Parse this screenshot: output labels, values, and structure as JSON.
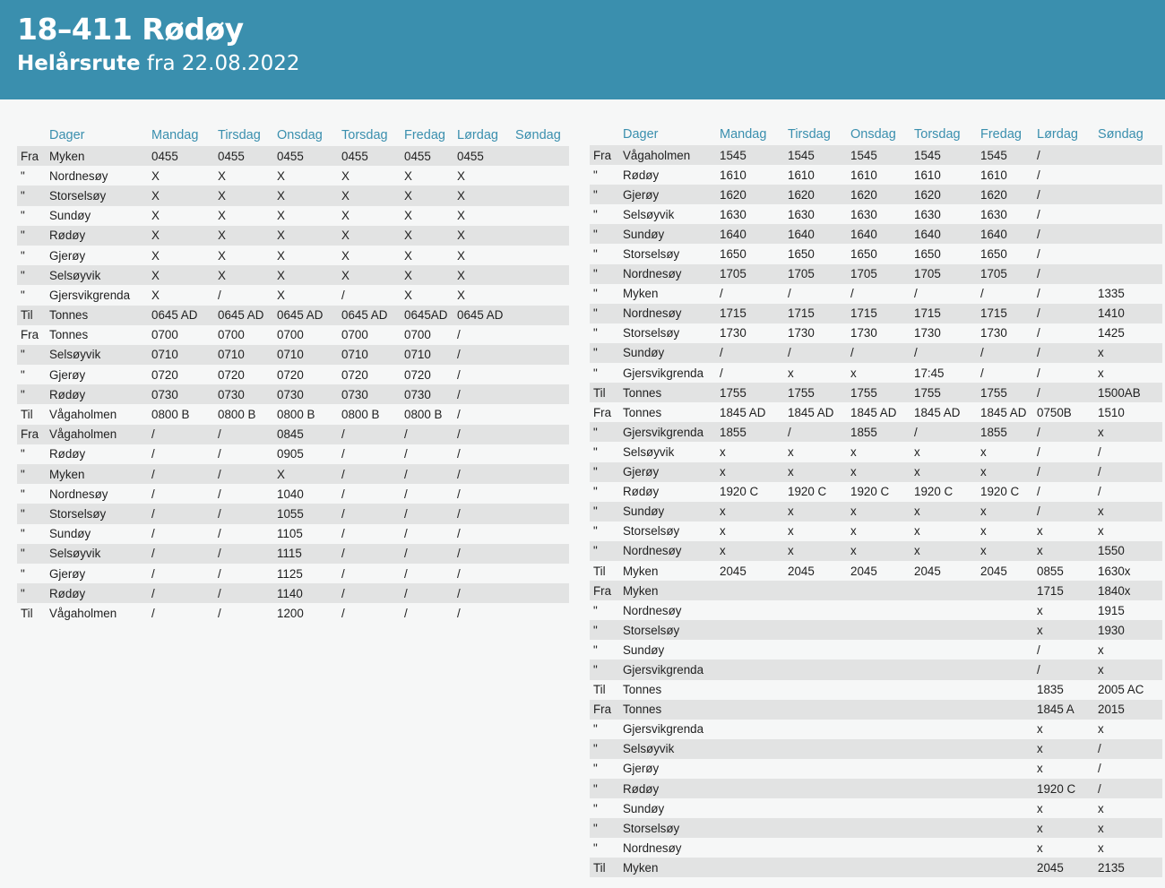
{
  "header": {
    "title": "18–411 Rødøy",
    "subtitle_bold": "Helårsrute",
    "subtitle_rest": " fra 22.08.2022"
  },
  "colors": {
    "header_bg": "#3a8fae",
    "accent_text": "#3a8fae",
    "row_shade": "#e2e3e3"
  },
  "left_table": {
    "headers": [
      "",
      "Dager",
      "Mandag",
      "Tirsdag",
      "Onsdag",
      "Torsdag",
      "Fredag",
      "Lørdag",
      "Søndag"
    ],
    "rows": [
      [
        "Fra",
        "Myken",
        "0455",
        "0455",
        "0455",
        "0455",
        "0455",
        "0455",
        ""
      ],
      [
        "\"",
        "Nordnesøy",
        "X",
        "X",
        "X",
        "X",
        "X",
        "X",
        ""
      ],
      [
        "\"",
        "Storselsøy",
        "X",
        "X",
        "X",
        "X",
        "X",
        "X",
        ""
      ],
      [
        "\"",
        "Sundøy",
        "X",
        "X",
        "X",
        "X",
        "X",
        "X",
        ""
      ],
      [
        "\"",
        "Rødøy",
        "X",
        "X",
        "X",
        "X",
        "X",
        "X",
        ""
      ],
      [
        "\"",
        "Gjerøy",
        "X",
        "X",
        "X",
        "X",
        "X",
        "X",
        ""
      ],
      [
        "\"",
        "Selsøyvik",
        "X",
        "X",
        "X",
        "X",
        "X",
        "X",
        ""
      ],
      [
        "\"",
        "Gjersvikgrenda",
        "X",
        "/",
        "X",
        "/",
        "X",
        "X",
        ""
      ],
      [
        "Til",
        "Tonnes",
        "0645 AD",
        "0645 AD",
        "0645 AD",
        "0645 AD",
        "0645AD",
        "0645 AD",
        ""
      ],
      [
        "Fra",
        "Tonnes",
        "0700",
        "0700",
        "0700",
        "0700",
        "0700",
        "/",
        ""
      ],
      [
        "\"",
        "Selsøyvik",
        "0710",
        "0710",
        "0710",
        "0710",
        "0710",
        "/",
        ""
      ],
      [
        "\"",
        "Gjerøy",
        "0720",
        "0720",
        "0720",
        "0720",
        "0720",
        "/",
        ""
      ],
      [
        "\"",
        "Rødøy",
        "0730",
        "0730",
        "0730",
        "0730",
        "0730",
        "/",
        ""
      ],
      [
        "Til",
        "Vågaholmen",
        "0800 B",
        "0800 B",
        "0800 B",
        "0800 B",
        "0800 B",
        "/",
        ""
      ],
      [
        "Fra",
        "Vågaholmen",
        "/",
        "/",
        "0845",
        "/",
        "/",
        "/",
        ""
      ],
      [
        "\"",
        "Rødøy",
        "/",
        "/",
        "0905",
        "/",
        "/",
        "/",
        ""
      ],
      [
        "\"",
        "Myken",
        "/",
        "/",
        "X",
        "/",
        "/",
        "/",
        ""
      ],
      [
        "\"",
        "Nordnesøy",
        "/",
        "/",
        "1040",
        "/",
        "/",
        "/",
        ""
      ],
      [
        "\"",
        "Storselsøy",
        "/",
        "/",
        "1055",
        "/",
        "/",
        "/",
        ""
      ],
      [
        "\"",
        "Sundøy",
        "/",
        "/",
        "1105",
        "/",
        "/",
        "/",
        ""
      ],
      [
        "\"",
        "Selsøyvik",
        "/",
        "/",
        "1115",
        "/",
        "/",
        "/",
        ""
      ],
      [
        "\"",
        "Gjerøy",
        "/",
        "/",
        "1125",
        "/",
        "/",
        "/",
        ""
      ],
      [
        "\"",
        "Rødøy",
        "/",
        "/",
        "1140",
        "/",
        "/",
        "/",
        ""
      ],
      [
        "Til",
        "Vågaholmen",
        "/",
        "/",
        "1200",
        "/",
        "/",
        "/",
        ""
      ]
    ]
  },
  "right_table": {
    "headers": [
      "",
      "Dager",
      "Mandag",
      "Tirsdag",
      "Onsdag",
      "Torsdag",
      "Fredag",
      "Lørdag",
      "Søndag"
    ],
    "rows": [
      [
        "Fra",
        "Vågaholmen",
        "1545",
        "1545",
        "1545",
        "1545",
        "1545",
        "/",
        ""
      ],
      [
        "\"",
        "Rødøy",
        "1610",
        "1610",
        "1610",
        "1610",
        "1610",
        "/",
        ""
      ],
      [
        "\"",
        "Gjerøy",
        "1620",
        "1620",
        "1620",
        "1620",
        "1620",
        "/",
        ""
      ],
      [
        "\"",
        "Selsøyvik",
        "1630",
        "1630",
        "1630",
        "1630",
        "1630",
        "/",
        ""
      ],
      [
        "\"",
        "Sundøy",
        "1640",
        "1640",
        "1640",
        "1640",
        "1640",
        "/",
        ""
      ],
      [
        "\"",
        "Storselsøy",
        "1650",
        "1650",
        "1650",
        "1650",
        "1650",
        "/",
        ""
      ],
      [
        "\"",
        "Nordnesøy",
        "1705",
        "1705",
        "1705",
        "1705",
        "1705",
        "/",
        ""
      ],
      [
        "\"",
        "Myken",
        "/",
        "/",
        "/",
        "/",
        "/",
        "/",
        "1335"
      ],
      [
        "\"",
        "Nordnesøy",
        "1715",
        "1715",
        "1715",
        "1715",
        "1715",
        "/",
        "1410"
      ],
      [
        "\"",
        "Storselsøy",
        "1730",
        "1730",
        "1730",
        "1730",
        "1730",
        "/",
        "1425"
      ],
      [
        "\"",
        "Sundøy",
        "/",
        "/",
        "/",
        "/",
        "/",
        "/",
        "x"
      ],
      [
        "\"",
        "Gjersvikgrenda",
        "/",
        "x",
        "x",
        "17:45",
        "/",
        "/",
        "x"
      ],
      [
        "Til",
        "Tonnes",
        "1755",
        "1755",
        "1755",
        "1755",
        "1755",
        "/",
        "1500AB"
      ],
      [
        "Fra",
        "Tonnes",
        "1845 AD",
        "1845 AD",
        "1845 AD",
        "1845 AD",
        "1845 AD",
        "0750B",
        "1510"
      ],
      [
        "\"",
        "Gjersvikgrenda",
        "1855",
        "/",
        "1855",
        "/",
        "1855",
        "/",
        "x"
      ],
      [
        "\"",
        "Selsøyvik",
        "x",
        "x",
        "x",
        "x",
        "x",
        "/",
        "/"
      ],
      [
        "\"",
        "Gjerøy",
        "x",
        "x",
        "x",
        "x",
        "x",
        "/",
        "/"
      ],
      [
        "\"",
        "Rødøy",
        "1920 C",
        "1920 C",
        "1920 C",
        "1920 C",
        "1920 C",
        "/",
        "/"
      ],
      [
        "\"",
        "Sundøy",
        "x",
        "x",
        "x",
        "x",
        "x",
        "/",
        "x"
      ],
      [
        "\"",
        "Storselsøy",
        "x",
        "x",
        "x",
        "x",
        "x",
        "x",
        "x"
      ],
      [
        "\"",
        "Nordnesøy",
        "x",
        "x",
        "x",
        "x",
        "x",
        "x",
        "1550"
      ],
      [
        "Til",
        "Myken",
        "2045",
        "2045",
        "2045",
        "2045",
        "2045",
        "0855",
        "1630x"
      ],
      [
        "Fra",
        "Myken",
        "",
        "",
        "",
        "",
        "",
        "1715",
        "1840x"
      ],
      [
        "\"",
        "Nordnesøy",
        "",
        "",
        "",
        "",
        "",
        "x",
        "1915"
      ],
      [
        "\"",
        "Storselsøy",
        "",
        "",
        "",
        "",
        "",
        "x",
        "1930"
      ],
      [
        "\"",
        "Sundøy",
        "",
        "",
        "",
        "",
        "",
        "/",
        "x"
      ],
      [
        "\"",
        "Gjersvikgrenda",
        "",
        "",
        "",
        "",
        "",
        "/",
        "x"
      ],
      [
        "Til",
        "Tonnes",
        "",
        "",
        "",
        "",
        "",
        "1835",
        "2005 AC"
      ],
      [
        "Fra",
        "Tonnes",
        "",
        "",
        "",
        "",
        "",
        "1845 A",
        "2015"
      ],
      [
        "\"",
        "Gjersvikgrenda",
        "",
        "",
        "",
        "",
        "",
        "x",
        "x"
      ],
      [
        "\"",
        "Selsøyvik",
        "",
        "",
        "",
        "",
        "",
        "x",
        "/"
      ],
      [
        "\"",
        "Gjerøy",
        "",
        "",
        "",
        "",
        "",
        "x",
        "/"
      ],
      [
        "\"",
        "Rødøy",
        "",
        "",
        "",
        "",
        "",
        "1920 C",
        "/"
      ],
      [
        "\"",
        "Sundøy",
        "",
        "",
        "",
        "",
        "",
        "x",
        "x"
      ],
      [
        "\"",
        "Storselsøy",
        "",
        "",
        "",
        "",
        "",
        "x",
        "x"
      ],
      [
        "\"",
        "Nordnesøy",
        "",
        "",
        "",
        "",
        "",
        "x",
        "x"
      ],
      [
        "Til",
        "Myken",
        "",
        "",
        "",
        "",
        "",
        "2045",
        "2135"
      ]
    ]
  }
}
